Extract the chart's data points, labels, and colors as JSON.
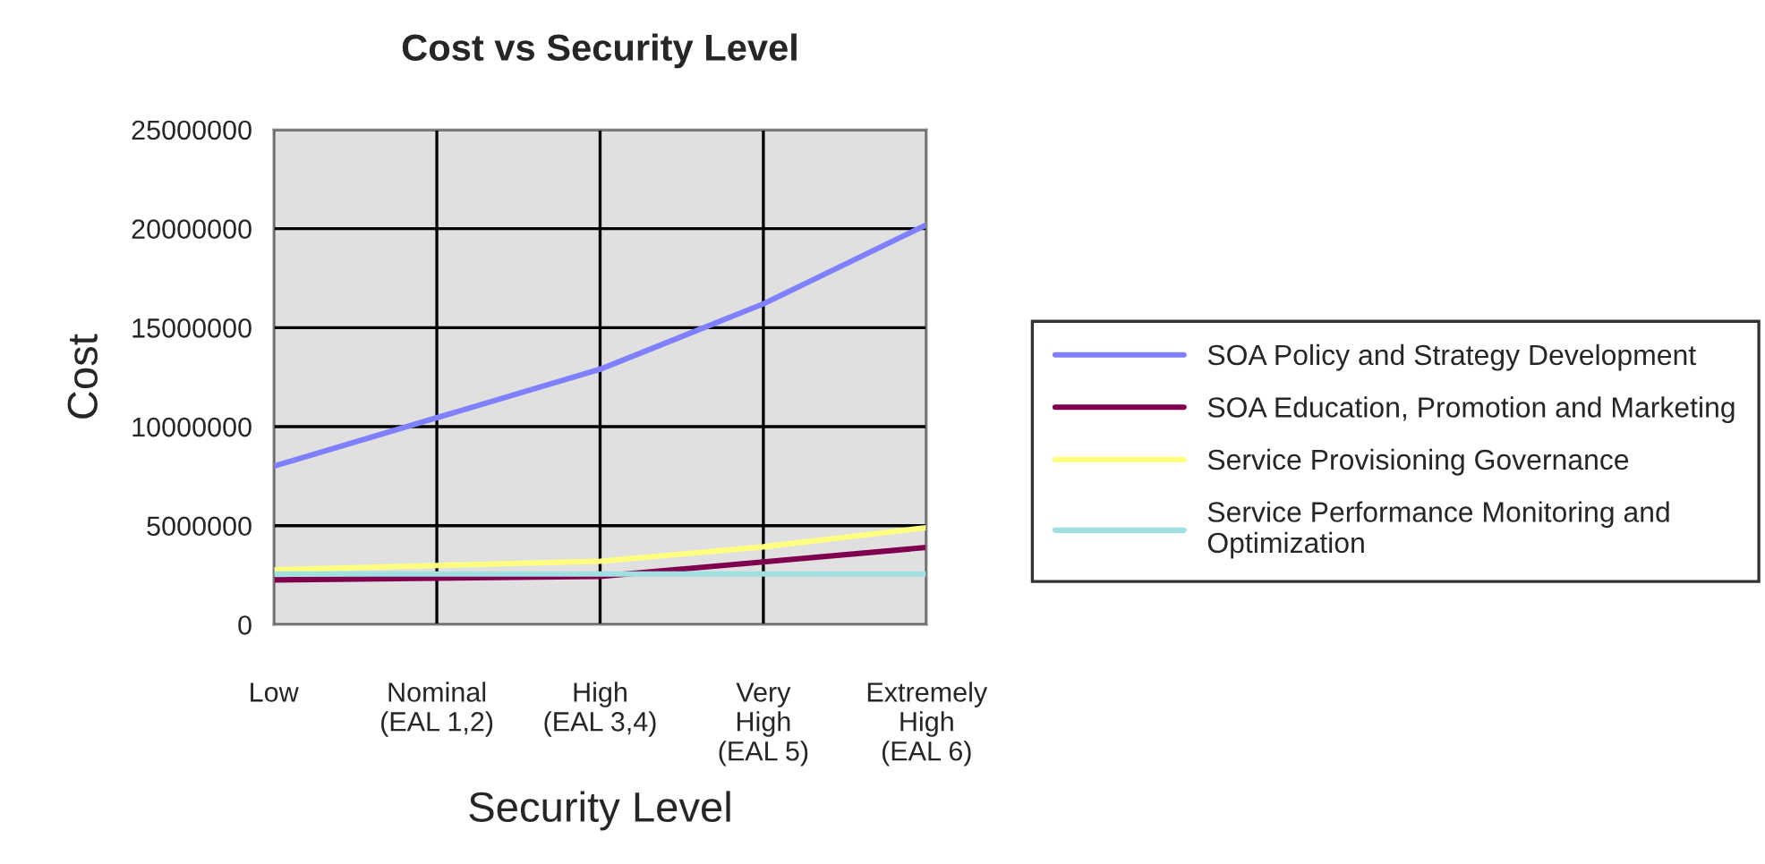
{
  "chart_data": {
    "type": "line",
    "title": "Cost vs Security Level",
    "xlabel": "Security Level",
    "ylabel": "Cost",
    "categories": [
      "Low",
      "Nominal\n(EAL 1,2)",
      "High\n(EAL 3,4)",
      "Very\nHigh\n(EAL 5)",
      "Extremely\nHigh\n(EAL 6)"
    ],
    "series": [
      {
        "name": "SOA Policy and Strategy Development",
        "color": "#8080ff",
        "values": [
          8000000,
          10450000,
          12900000,
          16200000,
          20200000
        ]
      },
      {
        "name": "SOA Education, Promotion and Marketing",
        "color": "#800050",
        "values": [
          2260000,
          2350000,
          2440000,
          3170000,
          3900000
        ]
      },
      {
        "name": "Service Provisioning Governance",
        "color": "#ffff80",
        "values": [
          2770000,
          2990000,
          3200000,
          3930000,
          4900000
        ]
      },
      {
        "name": "Service Performance Monitoring and\nOptimization",
        "color": "#a0e0e0",
        "values": [
          2560000,
          2560000,
          2560000,
          2560000,
          2560000
        ]
      }
    ],
    "ylim": [
      0,
      25000000
    ],
    "yticks": [
      0,
      5000000,
      10000000,
      15000000,
      20000000,
      25000000
    ],
    "grid": true,
    "legend": "right",
    "marker": "none",
    "line_style": "solid"
  }
}
